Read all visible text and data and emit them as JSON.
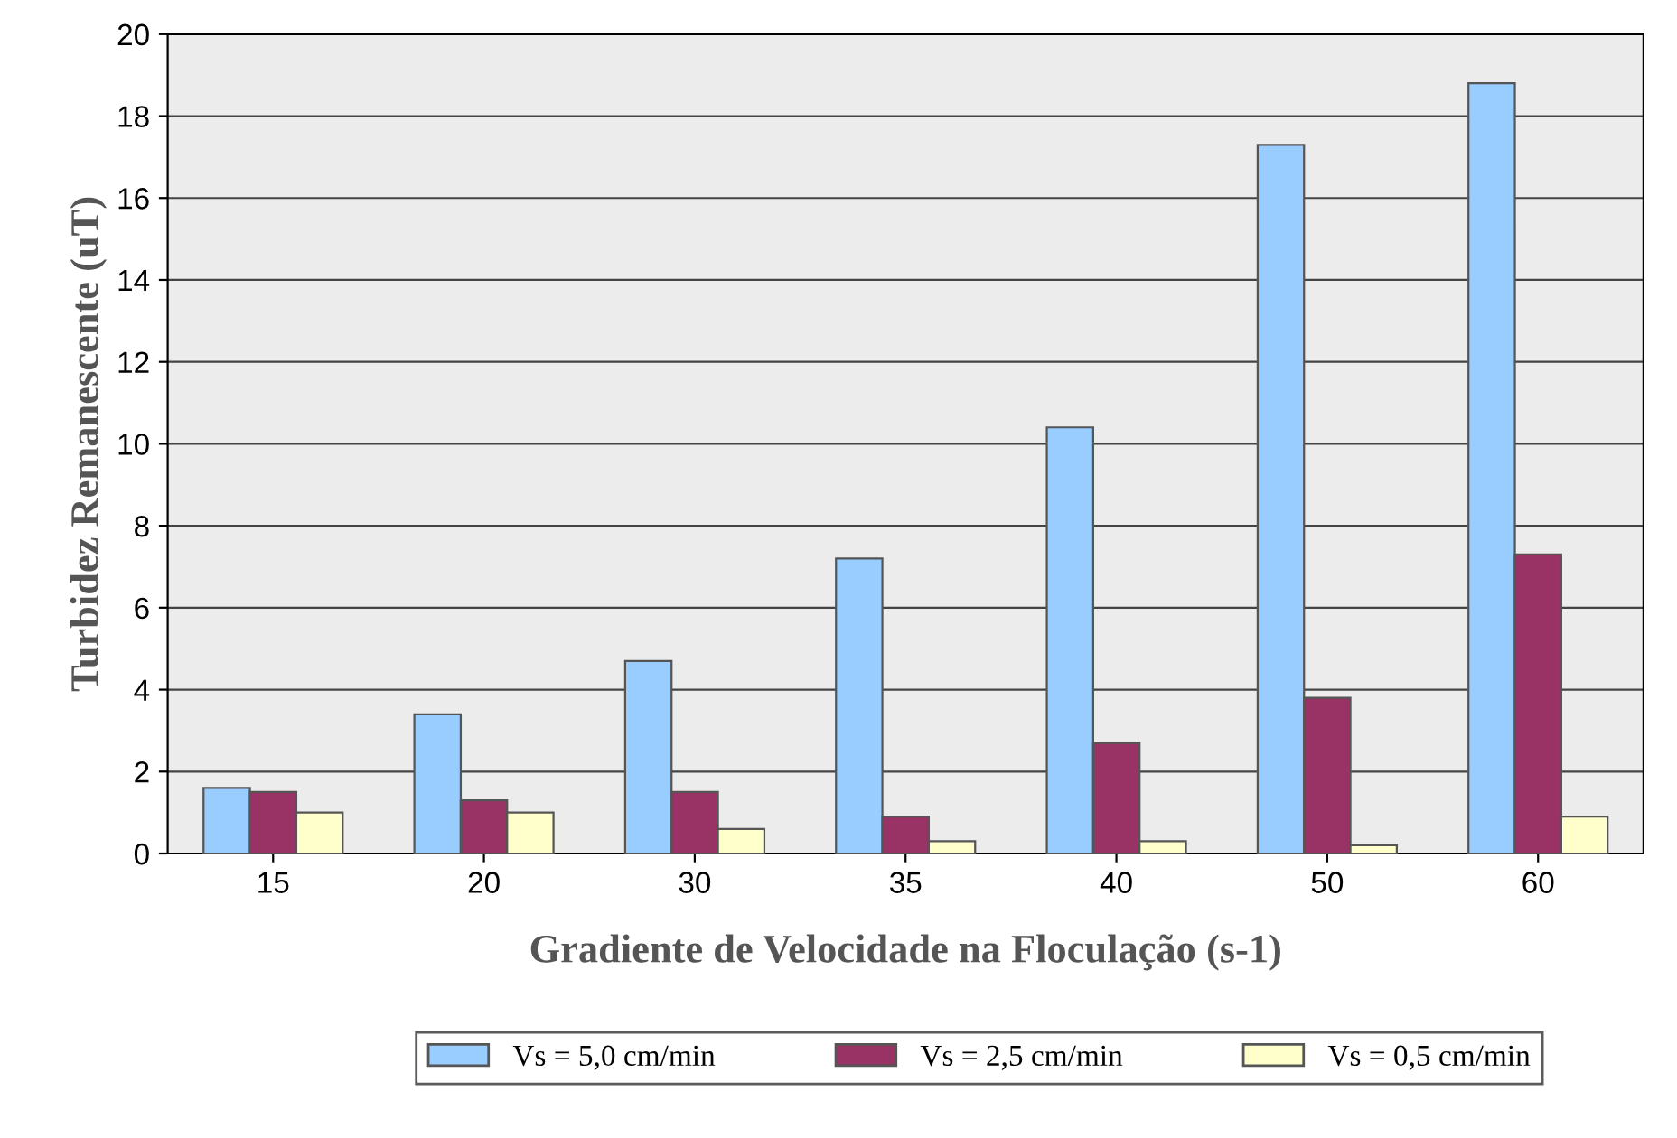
{
  "chart_data": {
    "type": "bar",
    "xlabel": "Gradiente de Velocidade na Floculação (s-1)",
    "ylabel": "Turbidez Remanescente (uT)",
    "categories": [
      "15",
      "20",
      "30",
      "35",
      "40",
      "50",
      "60"
    ],
    "series": [
      {
        "name": "Vs = 5,0 cm/min",
        "color": "#99ccff",
        "values": [
          1.6,
          3.4,
          4.7,
          7.2,
          10.4,
          17.3,
          18.8
        ]
      },
      {
        "name": "Vs = 2,5 cm/min",
        "color": "#993366",
        "values": [
          1.5,
          1.3,
          1.5,
          0.9,
          2.7,
          3.8,
          7.3
        ]
      },
      {
        "name": "Vs = 0,5 cm/min",
        "color": "#ffffcc",
        "values": [
          1.0,
          1.0,
          0.6,
          0.3,
          0.3,
          0.2,
          0.9
        ]
      }
    ],
    "ylim": [
      0,
      20
    ],
    "yticks": [
      0,
      2,
      4,
      6,
      8,
      10,
      12,
      14,
      16,
      18,
      20
    ],
    "grid": "y",
    "legend": "bottom"
  }
}
